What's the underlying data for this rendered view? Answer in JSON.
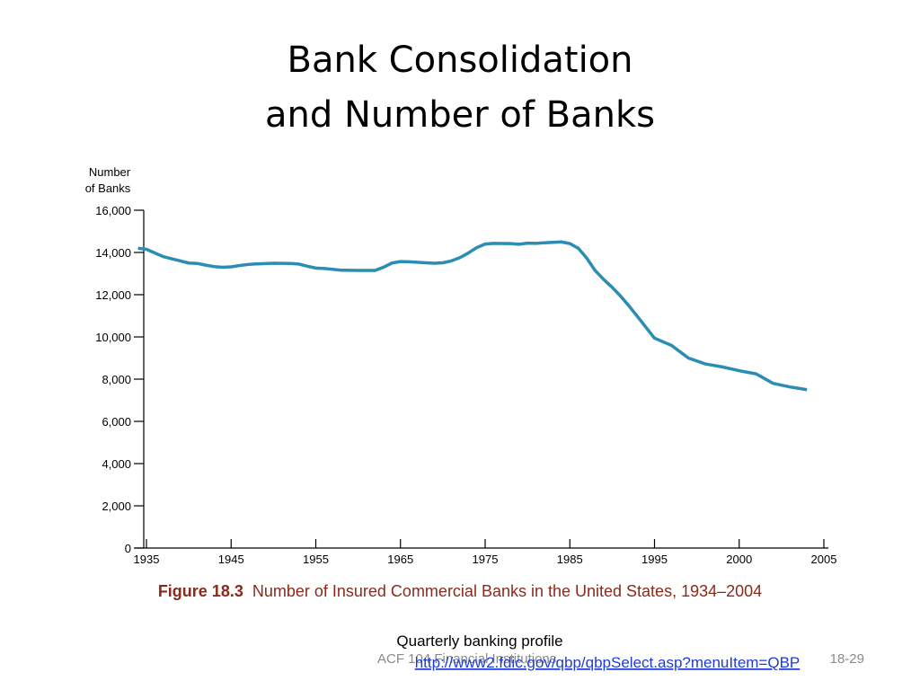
{
  "title": [
    "Bank Consolidation",
    "and Number of Banks"
  ],
  "chart_data": {
    "type": "line",
    "ylabel": [
      "Number",
      "of Banks"
    ],
    "x": [
      1934,
      1935,
      1937,
      1938,
      1939,
      1940,
      1941,
      1942,
      1943,
      1944,
      1945,
      1946,
      1947,
      1948,
      1950,
      1952,
      1953,
      1954,
      1955,
      1956,
      1957,
      1958,
      1960,
      1962,
      1963,
      1964,
      1965,
      1966,
      1968,
      1969,
      1970,
      1971,
      1972,
      1973,
      1974,
      1975,
      1976,
      1978,
      1979,
      1980,
      1981,
      1982,
      1984,
      1985,
      1986,
      1987,
      1988,
      1989,
      1990,
      1991,
      1992,
      1993,
      1994,
      1995,
      1996,
      1997,
      1998,
      1999,
      2000,
      2001,
      2002,
      2003,
      2004
    ],
    "series": [
      {
        "name": "Number of Banks",
        "color": "#2b8db3",
        "values": [
          14200,
          14150,
          13800,
          13700,
          13600,
          13500,
          13480,
          13400,
          13330,
          13300,
          13320,
          13380,
          13430,
          13460,
          13490,
          13480,
          13450,
          13350,
          13260,
          13240,
          13200,
          13160,
          13150,
          13150,
          13300,
          13500,
          13570,
          13560,
          13510,
          13490,
          13510,
          13600,
          13750,
          13970,
          14230,
          14400,
          14430,
          14420,
          14390,
          14440,
          14430,
          14460,
          14500,
          14420,
          14200,
          13730,
          13140,
          12720,
          12350,
          11930,
          11460,
          10960,
          10450,
          9940,
          9600,
          9000,
          8720,
          8580,
          8400,
          8250,
          7800,
          7630,
          7500
        ]
      }
    ],
    "xlim": [
      1934,
      2005
    ],
    "xticks": [
      1935,
      1945,
      1955,
      1965,
      1975,
      1985,
      1995,
      2000,
      2005
    ],
    "ylim": [
      0,
      16000
    ],
    "yticks": [
      0,
      {
        "value": 2000,
        "label": "2,000"
      },
      {
        "value": 4000,
        "label": "4,000"
      },
      {
        "value": 6000,
        "label": "6,000"
      },
      {
        "value": 8000,
        "label": "8,000"
      },
      {
        "value": 10000,
        "label": "10,000"
      },
      {
        "value": 12000,
        "label": "12,000"
      },
      {
        "value": 14000,
        "label": "14,000"
      },
      {
        "value": 16000,
        "label": "16,000"
      }
    ]
  },
  "caption": {
    "label": "Figure 18.3",
    "text": "Number of Insured Commercial Banks in the United States, 1934–2004"
  },
  "source": {
    "text": "Quarterly banking profile",
    "link": "http://www2.fdic.gov/qbp/qbpSelect.asp?menuItem=QBP"
  },
  "footer": {
    "left": "ACF 104 Financial Institutions",
    "right": "18-29"
  }
}
